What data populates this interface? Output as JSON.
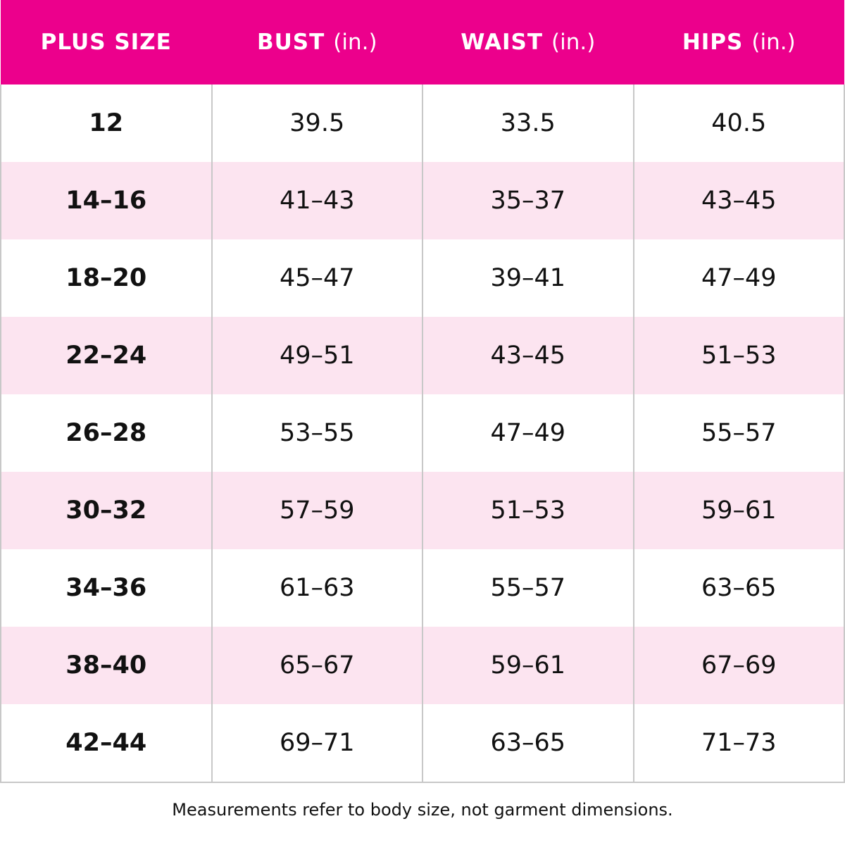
{
  "table": {
    "header": [
      {
        "label": "PLUS SIZE"
      },
      {
        "label": "BUST",
        "unit": "(in.)"
      },
      {
        "label": "WAIST",
        "unit": "(in.)"
      },
      {
        "label": "HIPS",
        "unit": "(in.)"
      }
    ],
    "rows": [
      [
        "12",
        "39.5",
        "33.5",
        "40.5"
      ],
      [
        "14–16",
        "41–43",
        "35–37",
        "43–45"
      ],
      [
        "18–20",
        "45–47",
        "39–41",
        "47–49"
      ],
      [
        "22–24",
        "49–51",
        "43–45",
        "51–53"
      ],
      [
        "26–28",
        "53–55",
        "47–49",
        "55–57"
      ],
      [
        "30–32",
        "57–59",
        "51–53",
        "59–61"
      ],
      [
        "34–36",
        "61–63",
        "55–57",
        "63–65"
      ],
      [
        "38–40",
        "65–67",
        "59–61",
        "67–69"
      ],
      [
        "42–44",
        "69–71",
        "63–65",
        "71–73"
      ]
    ]
  },
  "footnote": "Measurements refer to body size, not garment dimensions."
}
